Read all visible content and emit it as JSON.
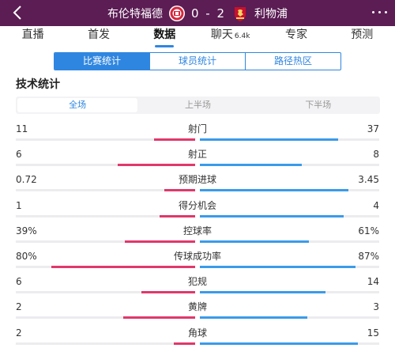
{
  "header": {
    "home_team": "布伦特福德",
    "away_team": "利物浦",
    "score": "0 - 2",
    "icons": {
      "back": "back-arrow-icon",
      "more": "more-dots-icon",
      "home_badge": "brentford-badge-icon",
      "away_badge": "liverpool-badge-icon"
    }
  },
  "tabs": [
    {
      "label": "直播",
      "active": false
    },
    {
      "label": "首发",
      "active": false
    },
    {
      "label": "数据",
      "active": true
    },
    {
      "label": "聊天",
      "count": "6.4k",
      "active": false
    },
    {
      "label": "专家",
      "active": false
    },
    {
      "label": "预测",
      "active": false
    }
  ],
  "subtabs": [
    {
      "label": "比赛统计",
      "active": true
    },
    {
      "label": "球员统计",
      "active": false
    },
    {
      "label": "路径热区",
      "active": false
    }
  ],
  "section_title": "技术统计",
  "periods": [
    {
      "label": "全场",
      "active": true
    },
    {
      "label": "上半场",
      "active": false
    },
    {
      "label": "下半场",
      "active": false
    }
  ],
  "stats": [
    {
      "name": "射门",
      "left": "11",
      "right": "37",
      "left_fill": 0.23,
      "right_fill": 0.77
    },
    {
      "name": "射正",
      "left": "6",
      "right": "8",
      "left_fill": 0.43,
      "right_fill": 0.57
    },
    {
      "name": "预期进球",
      "left": "0.72",
      "right": "3.45",
      "left_fill": 0.17,
      "right_fill": 0.83
    },
    {
      "name": "得分机会",
      "left": "1",
      "right": "4",
      "left_fill": 0.2,
      "right_fill": 0.8
    },
    {
      "name": "控球率",
      "left": "39%",
      "right": "61%",
      "left_fill": 0.39,
      "right_fill": 0.61
    },
    {
      "name": "传球成功率",
      "left": "80%",
      "right": "87%",
      "left_fill": 0.8,
      "right_fill": 0.87
    },
    {
      "name": "犯规",
      "left": "6",
      "right": "14",
      "left_fill": 0.3,
      "right_fill": 0.7
    },
    {
      "name": "黄牌",
      "left": "2",
      "right": "3",
      "left_fill": 0.4,
      "right_fill": 0.6
    },
    {
      "name": "角球",
      "left": "2",
      "right": "15",
      "left_fill": 0.12,
      "right_fill": 0.88
    }
  ],
  "colors": {
    "header_bg": "#5b1d54",
    "accent": "#2f86e0",
    "home_bar": "#e0386b",
    "away_bar": "#3a9bea"
  }
}
